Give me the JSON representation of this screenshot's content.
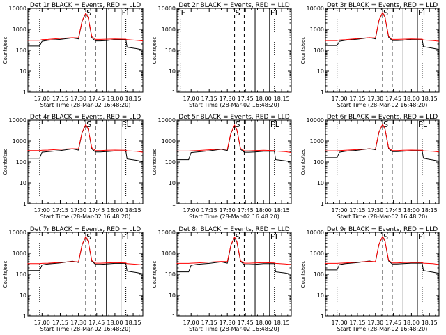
{
  "page": {
    "title": ""
  },
  "style": {
    "events_color": "#000000",
    "lld_color": "#ff0000",
    "axis_color": "#000000"
  },
  "chart_data": [
    {
      "type": "line",
      "title": "Det 1r BLACK = Events, RED = LLD",
      "xlabel": "Start Time (28-Mar-02 16:48:20)",
      "ylabel": "Counts/sec",
      "ylim": [
        1,
        10000
      ],
      "log_y": true,
      "x_ticks": [
        "17:00",
        "17:15",
        "17:30",
        "17:45",
        "18:00",
        "18:15"
      ],
      "y_ticks": [
        "1",
        "10",
        "100",
        "1000",
        "10000"
      ],
      "markers": [
        {
          "time": "16:58",
          "style": "dotted",
          "label": ""
        },
        {
          "time": "17:36",
          "style": "dashed",
          "label": "S"
        },
        {
          "time": "17:44",
          "style": "dashed",
          "label": ""
        },
        {
          "time": "17:53",
          "style": "solid",
          "label": ""
        },
        {
          "time": "18:05",
          "style": "solid",
          "label": "F"
        },
        {
          "time": "18:09",
          "style": "dotted",
          "label": "L"
        }
      ],
      "x": [
        "16:48",
        "16:58",
        "17:00",
        "17:05",
        "17:15",
        "17:25",
        "17:30",
        "17:33",
        "17:36",
        "17:38",
        "17:41",
        "17:44",
        "17:48",
        "17:53",
        "18:00",
        "18:09",
        "18:10",
        "18:18",
        "18:23"
      ],
      "series": [
        {
          "name": "Events",
          "color": "#000000",
          "values": [
            160,
            160,
            270,
            300,
            330,
            390,
            350,
            2500,
            5800,
            3500,
            400,
            280,
            280,
            290,
            320,
            330,
            140,
            120,
            105
          ]
        },
        {
          "name": "LLD",
          "color": "#ff0000",
          "values": [
            300,
            300,
            320,
            330,
            370,
            400,
            390,
            2600,
            6000,
            3600,
            450,
            330,
            330,
            340,
            350,
            340,
            320,
            300,
            280
          ]
        }
      ]
    },
    {
      "type": "line",
      "title": "Det 2r BLACK = Events, RED = LLD",
      "xlabel": "Start Time (28-Mar-02 16:48:20)",
      "ylabel": "Counts/sec",
      "ylim": [
        1,
        10000
      ],
      "log_y": true,
      "x_ticks": [
        "17:00",
        "17:15",
        "17:30",
        "17:45",
        "18:00",
        "18:15"
      ],
      "y_ticks": [
        "1",
        "10",
        "100",
        "1000",
        "10000"
      ],
      "markers": [
        {
          "time": "16:51",
          "style": "dotted",
          "label": "E"
        },
        {
          "time": "17:36",
          "style": "dashed",
          "label": "S"
        },
        {
          "time": "17:44",
          "style": "dashed",
          "label": ""
        },
        {
          "time": "17:53",
          "style": "solid",
          "label": ""
        },
        {
          "time": "18:05",
          "style": "solid",
          "label": "F"
        },
        {
          "time": "18:09",
          "style": "dotted",
          "label": "L"
        }
      ],
      "x": [],
      "series": []
    },
    {
      "type": "line",
      "title": "Det 3r BLACK = Events, RED = LLD",
      "xlabel": "Start Time (28-Mar-02 16:48:20)",
      "ylabel": "Counts/sec",
      "ylim": [
        1,
        10000
      ],
      "log_y": true,
      "x_ticks": [
        "17:00",
        "17:15",
        "17:30",
        "17:45",
        "18:00",
        "18:15"
      ],
      "y_ticks": [
        "1",
        "10",
        "100",
        "1000",
        "10000"
      ],
      "markers": [
        {
          "time": "16:58",
          "style": "dotted",
          "label": ""
        },
        {
          "time": "17:36",
          "style": "dashed",
          "label": "S"
        },
        {
          "time": "17:44",
          "style": "dashed",
          "label": ""
        },
        {
          "time": "17:53",
          "style": "solid",
          "label": ""
        },
        {
          "time": "18:05",
          "style": "solid",
          "label": "F"
        },
        {
          "time": "18:09",
          "style": "dotted",
          "label": "L"
        }
      ],
      "x": [
        "16:48",
        "16:58",
        "17:00",
        "17:05",
        "17:15",
        "17:25",
        "17:30",
        "17:33",
        "17:36",
        "17:38",
        "17:41",
        "17:44",
        "17:48",
        "17:53",
        "18:00",
        "18:09",
        "18:10",
        "18:18",
        "18:23"
      ],
      "series": [
        {
          "name": "Events",
          "color": "#000000",
          "values": [
            170,
            170,
            270,
            300,
            340,
            400,
            350,
            2700,
            6200,
            3700,
            420,
            290,
            290,
            300,
            330,
            330,
            150,
            125,
            110
          ]
        },
        {
          "name": "LLD",
          "color": "#ff0000",
          "values": [
            290,
            290,
            310,
            320,
            360,
            400,
            390,
            2800,
            6500,
            3800,
            460,
            330,
            330,
            340,
            350,
            340,
            310,
            290,
            270
          ]
        }
      ]
    },
    {
      "type": "line",
      "title": "Det 4r BLACK = Events, RED = LLD",
      "xlabel": "Start Time (28-Mar-02 16:48:20)",
      "ylabel": "Counts/sec",
      "ylim": [
        1,
        10000
      ],
      "log_y": true,
      "x_ticks": [
        "17:00",
        "17:15",
        "17:30",
        "17:45",
        "18:00",
        "18:15"
      ],
      "y_ticks": [
        "1",
        "10",
        "100",
        "1000",
        "10000"
      ],
      "markers": [
        {
          "time": "16:58",
          "style": "dotted",
          "label": ""
        },
        {
          "time": "17:36",
          "style": "dashed",
          "label": "S"
        },
        {
          "time": "17:44",
          "style": "dashed",
          "label": ""
        },
        {
          "time": "17:53",
          "style": "solid",
          "label": ""
        },
        {
          "time": "18:05",
          "style": "solid",
          "label": "F"
        },
        {
          "time": "18:09",
          "style": "dotted",
          "label": "L"
        }
      ],
      "x": [
        "16:48",
        "16:58",
        "17:00",
        "17:05",
        "17:15",
        "17:25",
        "17:30",
        "17:33",
        "17:36",
        "17:38",
        "17:41",
        "17:44",
        "17:48",
        "17:53",
        "18:00",
        "18:09",
        "18:10",
        "18:18",
        "18:23"
      ],
      "series": [
        {
          "name": "Events",
          "color": "#000000",
          "values": [
            150,
            150,
            290,
            310,
            350,
            420,
            370,
            2600,
            6000,
            3600,
            420,
            300,
            300,
            310,
            330,
            330,
            140,
            120,
            105
          ]
        },
        {
          "name": "LLD",
          "color": "#ff0000",
          "values": [
            350,
            350,
            360,
            370,
            400,
            430,
            420,
            2700,
            6300,
            3700,
            470,
            350,
            350,
            360,
            370,
            360,
            340,
            320,
            290
          ]
        }
      ]
    },
    {
      "type": "line",
      "title": "Det 5r BLACK = Events, RED = LLD",
      "xlabel": "Start Time (28-Mar-02 16:48:20)",
      "ylabel": "Counts/sec",
      "ylim": [
        1,
        10000
      ],
      "log_y": true,
      "x_ticks": [
        "17:00",
        "17:15",
        "17:30",
        "17:45",
        "18:00",
        "18:15"
      ],
      "y_ticks": [
        "1",
        "10",
        "100",
        "1000",
        "10000"
      ],
      "markers": [
        {
          "time": "17:36",
          "style": "dashed",
          "label": "S"
        },
        {
          "time": "17:44",
          "style": "dashed",
          "label": ""
        },
        {
          "time": "17:53",
          "style": "solid",
          "label": ""
        },
        {
          "time": "18:05",
          "style": "solid",
          "label": "F"
        },
        {
          "time": "18:09",
          "style": "dotted",
          "label": "L"
        }
      ],
      "x": [
        "16:48",
        "16:58",
        "17:00",
        "17:05",
        "17:15",
        "17:25",
        "17:30",
        "17:33",
        "17:36",
        "17:38",
        "17:41",
        "17:44",
        "17:48",
        "17:53",
        "18:00",
        "18:09",
        "18:10",
        "18:18",
        "18:23"
      ],
      "series": [
        {
          "name": "Events",
          "color": "#000000",
          "values": [
            130,
            130,
            280,
            300,
            340,
            400,
            350,
            2400,
            5500,
            3300,
            400,
            290,
            290,
            300,
            320,
            320,
            130,
            115,
            100
          ]
        },
        {
          "name": "LLD",
          "color": "#ff0000",
          "values": [
            330,
            330,
            340,
            350,
            380,
            410,
            400,
            2500,
            5800,
            3400,
            440,
            340,
            340,
            350,
            360,
            350,
            330,
            310,
            280
          ]
        }
      ]
    },
    {
      "type": "line",
      "title": "Det 6r BLACK = Events, RED = LLD",
      "xlabel": "Start Time (28-Mar-02 16:48:20)",
      "ylabel": "Counts/sec",
      "ylim": [
        1,
        10000
      ],
      "log_y": true,
      "x_ticks": [
        "17:00",
        "17:15",
        "17:30",
        "17:45",
        "18:00",
        "18:15"
      ],
      "y_ticks": [
        "1",
        "10",
        "100",
        "1000",
        "10000"
      ],
      "markers": [
        {
          "time": "16:58",
          "style": "dotted",
          "label": ""
        },
        {
          "time": "17:36",
          "style": "dashed",
          "label": "S"
        },
        {
          "time": "17:44",
          "style": "dashed",
          "label": ""
        },
        {
          "time": "17:53",
          "style": "solid",
          "label": ""
        },
        {
          "time": "18:05",
          "style": "solid",
          "label": "F"
        },
        {
          "time": "18:09",
          "style": "dotted",
          "label": "L"
        }
      ],
      "x": [
        "16:48",
        "16:58",
        "17:00",
        "17:05",
        "17:15",
        "17:25",
        "17:30",
        "17:33",
        "17:36",
        "17:38",
        "17:41",
        "17:44",
        "17:48",
        "17:53",
        "18:00",
        "18:09",
        "18:10",
        "18:18",
        "18:23"
      ],
      "series": [
        {
          "name": "Events",
          "color": "#000000",
          "values": [
            160,
            160,
            290,
            320,
            360,
            430,
            380,
            2700,
            6200,
            3700,
            430,
            310,
            310,
            320,
            340,
            340,
            150,
            125,
            110
          ]
        },
        {
          "name": "LLD",
          "color": "#ff0000",
          "values": [
            340,
            340,
            350,
            360,
            390,
            420,
            410,
            2800,
            6400,
            3800,
            470,
            350,
            350,
            360,
            370,
            360,
            340,
            320,
            300
          ]
        }
      ]
    },
    {
      "type": "line",
      "title": "Det 7r BLACK = Events, RED = LLD",
      "xlabel": "Start Time (28-Mar-02 16:48:20)",
      "ylabel": "Counts/sec",
      "ylim": [
        1,
        10000
      ],
      "log_y": true,
      "x_ticks": [
        "17:00",
        "17:15",
        "17:30",
        "17:45",
        "18:00",
        "18:15"
      ],
      "y_ticks": [
        "1",
        "10",
        "100",
        "1000",
        "10000"
      ],
      "markers": [
        {
          "time": "16:58",
          "style": "dotted",
          "label": ""
        },
        {
          "time": "17:36",
          "style": "dashed",
          "label": "S"
        },
        {
          "time": "17:44",
          "style": "dashed",
          "label": ""
        },
        {
          "time": "17:53",
          "style": "solid",
          "label": ""
        },
        {
          "time": "18:05",
          "style": "solid",
          "label": "F"
        },
        {
          "time": "18:09",
          "style": "dotted",
          "label": "L"
        }
      ],
      "x": [
        "16:48",
        "16:58",
        "17:00",
        "17:05",
        "17:15",
        "17:25",
        "17:30",
        "17:33",
        "17:36",
        "17:38",
        "17:41",
        "17:44",
        "17:48",
        "17:53",
        "18:00",
        "18:09",
        "18:10",
        "18:18",
        "18:23"
      ],
      "series": [
        {
          "name": "Events",
          "color": "#000000",
          "values": [
            150,
            150,
            280,
            310,
            350,
            420,
            370,
            2600,
            6100,
            3600,
            420,
            300,
            300,
            310,
            330,
            330,
            140,
            120,
            105
          ]
        },
        {
          "name": "LLD",
          "color": "#ff0000",
          "values": [
            320,
            320,
            330,
            340,
            370,
            400,
            390,
            2700,
            6400,
            3700,
            450,
            340,
            340,
            350,
            360,
            350,
            320,
            300,
            280
          ]
        }
      ]
    },
    {
      "type": "line",
      "title": "Det 8r BLACK = Events, RED = LLD",
      "xlabel": "Start Time (28-Mar-02 16:48:20)",
      "ylabel": "Counts/sec",
      "ylim": [
        1,
        10000
      ],
      "log_y": true,
      "x_ticks": [
        "17:00",
        "17:15",
        "17:30",
        "17:45",
        "18:00",
        "18:15"
      ],
      "y_ticks": [
        "1",
        "10",
        "100",
        "1000",
        "10000"
      ],
      "markers": [
        {
          "time": "17:36",
          "style": "dashed",
          "label": "S"
        },
        {
          "time": "17:44",
          "style": "dashed",
          "label": ""
        },
        {
          "time": "17:53",
          "style": "solid",
          "label": ""
        },
        {
          "time": "18:05",
          "style": "solid",
          "label": "F"
        },
        {
          "time": "18:09",
          "style": "dotted",
          "label": "L"
        }
      ],
      "x": [
        "16:48",
        "16:58",
        "17:00",
        "17:05",
        "17:15",
        "17:25",
        "17:30",
        "17:33",
        "17:36",
        "17:38",
        "17:41",
        "17:44",
        "17:48",
        "17:53",
        "18:00",
        "18:09",
        "18:10",
        "18:18",
        "18:23"
      ],
      "series": [
        {
          "name": "Events",
          "color": "#000000",
          "values": [
            130,
            130,
            270,
            300,
            330,
            390,
            340,
            2500,
            5700,
            3400,
            410,
            290,
            290,
            300,
            320,
            320,
            130,
            115,
            100
          ]
        },
        {
          "name": "LLD",
          "color": "#ff0000",
          "values": [
            330,
            330,
            340,
            350,
            380,
            410,
            400,
            2600,
            6000,
            3500,
            440,
            340,
            340,
            350,
            360,
            350,
            330,
            310,
            290
          ]
        }
      ]
    },
    {
      "type": "line",
      "title": "Det 9r BLACK = Events, RED = LLD",
      "xlabel": "Start Time (28-Mar-02 16:48:20)",
      "ylabel": "Counts/sec",
      "ylim": [
        1,
        10000
      ],
      "log_y": true,
      "x_ticks": [
        "17:00",
        "17:15",
        "17:30",
        "17:45",
        "18:00",
        "18:15"
      ],
      "y_ticks": [
        "1",
        "10",
        "100",
        "1000",
        "10000"
      ],
      "markers": [
        {
          "time": "16:58",
          "style": "dotted",
          "label": ""
        },
        {
          "time": "17:36",
          "style": "dashed",
          "label": "S"
        },
        {
          "time": "17:44",
          "style": "dashed",
          "label": ""
        },
        {
          "time": "17:53",
          "style": "solid",
          "label": ""
        },
        {
          "time": "18:05",
          "style": "solid",
          "label": "F"
        },
        {
          "time": "18:09",
          "style": "dotted",
          "label": "L"
        }
      ],
      "x": [
        "16:48",
        "16:58",
        "17:00",
        "17:05",
        "17:15",
        "17:25",
        "17:30",
        "17:33",
        "17:36",
        "17:38",
        "17:41",
        "17:44",
        "17:48",
        "17:53",
        "18:00",
        "18:09",
        "18:10",
        "18:18",
        "18:23"
      ],
      "series": [
        {
          "name": "Events",
          "color": "#000000",
          "values": [
            160,
            160,
            290,
            320,
            360,
            430,
            380,
            2700,
            6300,
            3700,
            430,
            310,
            310,
            320,
            340,
            340,
            150,
            125,
            110
          ]
        },
        {
          "name": "LLD",
          "color": "#ff0000",
          "values": [
            330,
            330,
            340,
            350,
            380,
            410,
            400,
            2800,
            6500,
            3800,
            460,
            350,
            350,
            360,
            370,
            360,
            340,
            320,
            290
          ]
        }
      ]
    }
  ]
}
